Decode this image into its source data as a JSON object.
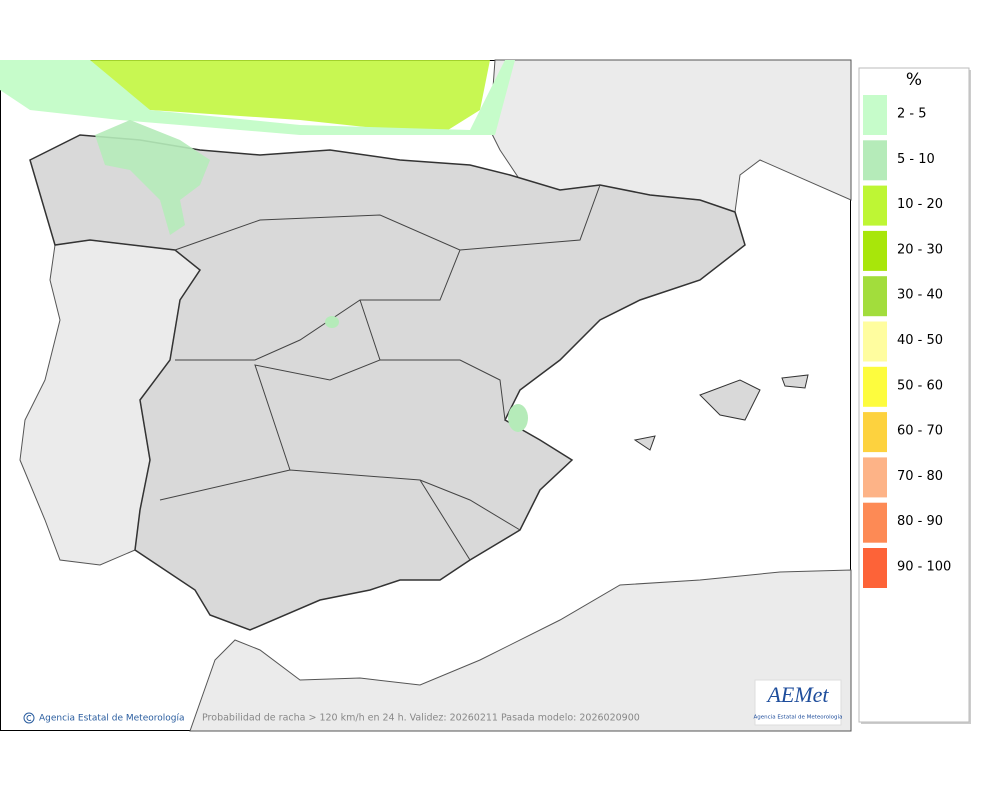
{
  "legend": {
    "title": "%",
    "items": [
      {
        "label": "2 - 5",
        "color": "#c6fcca"
      },
      {
        "label": "5 - 10",
        "color": "#b5ebb9"
      },
      {
        "label": "10 - 20",
        "color": "#bef634"
      },
      {
        "label": "20 - 30",
        "color": "#a8e60a"
      },
      {
        "label": "30 - 40",
        "color": "#a2dd3c"
      },
      {
        "label": "40 - 50",
        "color": "#fffd9f"
      },
      {
        "label": "50 - 60",
        "color": "#fdfc3e"
      },
      {
        "label": "60 - 70",
        "color": "#fdd23e"
      },
      {
        "label": "70 - 80",
        "color": "#fdb387"
      },
      {
        "label": "80 - 90",
        "color": "#fd8a55"
      },
      {
        "label": "90 - 100",
        "color": "#fd6338"
      }
    ]
  },
  "footer": {
    "credit": "Agencia Estatal de Meteorología",
    "caption": "Probabilidad de racha > 120 km/h en 24 h. Validez: 20260211 Pasada modelo: 2026020900"
  },
  "logo": {
    "name": "AEMet",
    "subtitle": "Agencia Estatal de Meteorología"
  }
}
